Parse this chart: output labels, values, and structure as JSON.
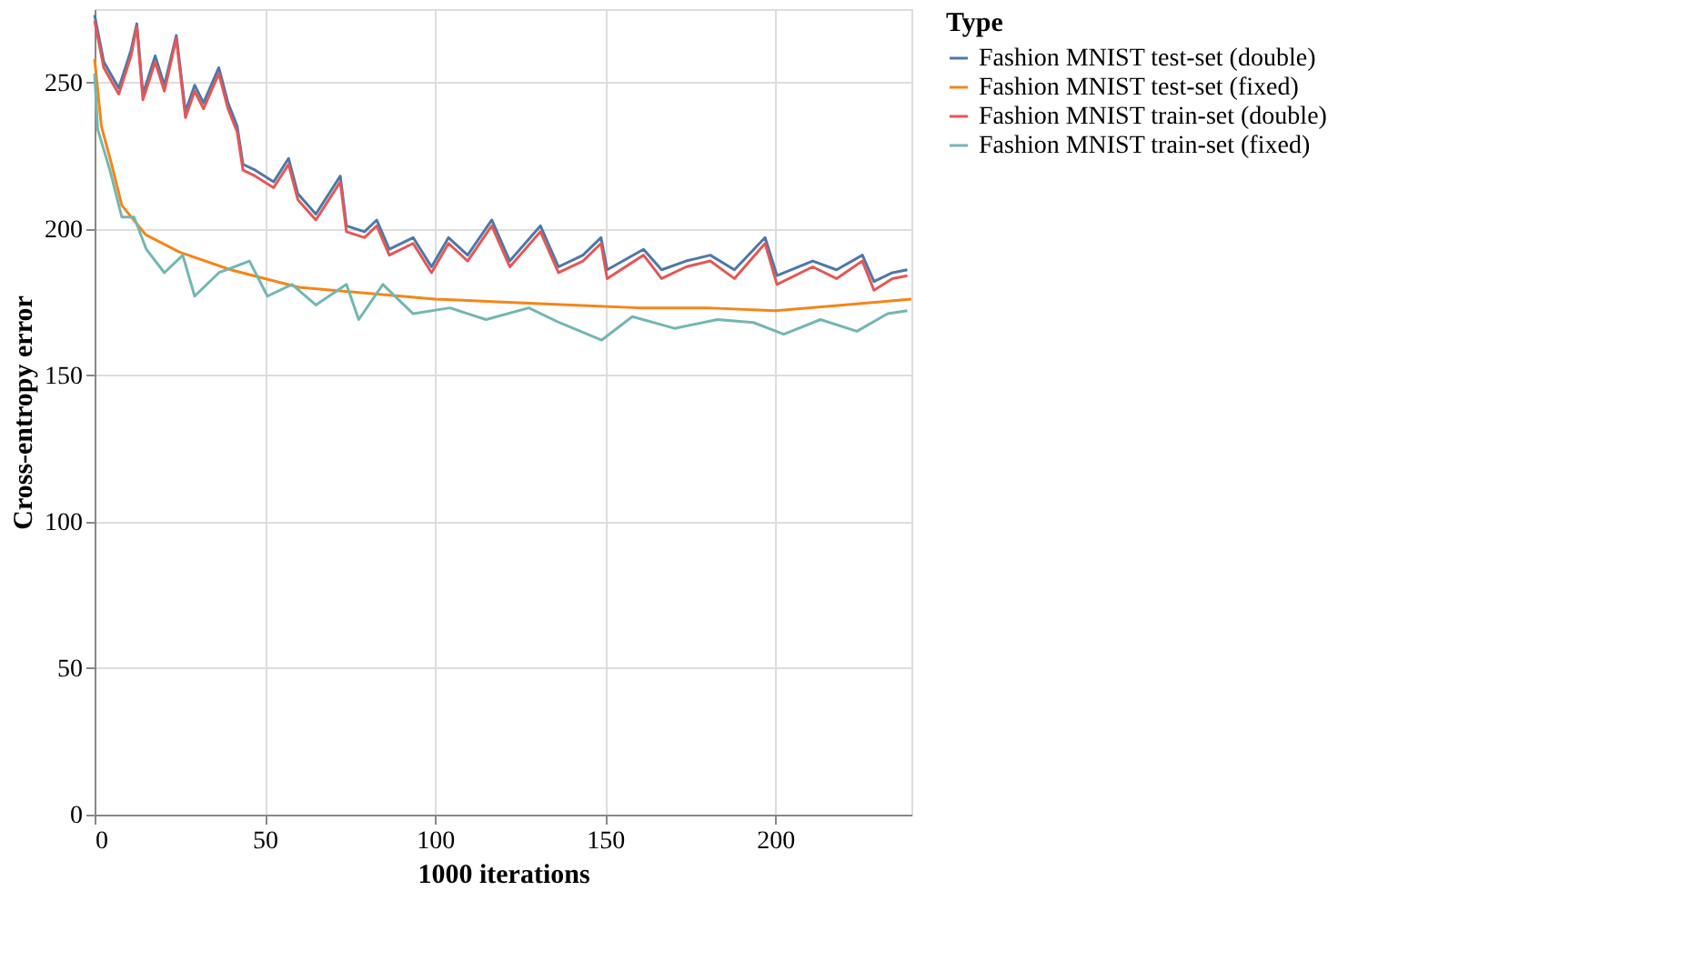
{
  "chart_data": {
    "type": "line",
    "xlabel": "1000 iterations",
    "ylabel": "Cross-entropy error",
    "legend_title": "Type",
    "xlim": [
      0,
      240
    ],
    "ylim": [
      0,
      275
    ],
    "xticks": [
      0,
      50,
      100,
      150,
      200
    ],
    "yticks": [
      0,
      50,
      100,
      150,
      200,
      250
    ],
    "grid": true,
    "legend": "right",
    "series": [
      {
        "name": "Fashion MNIST test-set (double)",
        "color": "#4c78a8",
        "x": [
          0,
          2.7,
          7.1,
          10.7,
          12.4,
          14.2,
          17.8,
          20.5,
          24,
          26.7,
          29.4,
          32,
          36.5,
          39.2,
          41.9,
          43.6,
          47.2,
          52.6,
          57,
          59.7,
          65,
          72.2,
          74,
          79.3,
          82.9,
          86.6,
          93.6,
          99,
          104,
          109.6,
          116.7,
          122,
          131,
          136.3,
          143.5,
          148.8,
          150.6,
          161.3,
          166.6,
          173.8,
          180.9,
          188,
          197,
          200.5,
          211,
          218,
          225.6,
          229,
          234.4,
          238.8
        ],
        "values": [
          273,
          257,
          248,
          261,
          270,
          246,
          259,
          249,
          266,
          240,
          249,
          243,
          255,
          243,
          235,
          222,
          220,
          216,
          224,
          212,
          205,
          218,
          201,
          199,
          203,
          193,
          197,
          187,
          197,
          191,
          203,
          189,
          201,
          187,
          191,
          197,
          186,
          193,
          186,
          189,
          191,
          186,
          197,
          184,
          189,
          186,
          191,
          182,
          185,
          186
        ]
      },
      {
        "name": "Fashion MNIST test-set (fixed)",
        "color": "#f58518",
        "x": [
          0,
          2,
          5,
          8,
          15,
          25,
          40,
          60,
          80,
          100,
          120,
          140,
          160,
          180,
          200,
          220,
          240
        ],
        "values": [
          258,
          235,
          222,
          208,
          198,
          192,
          186,
          180,
          178,
          176,
          175,
          174,
          173,
          173,
          172,
          174,
          176
        ]
      },
      {
        "name": "Fashion MNIST train-set (double)",
        "color": "#e45756",
        "x": [
          0,
          2.7,
          7.1,
          10.7,
          12.4,
          14.2,
          17.8,
          20.5,
          24,
          26.7,
          29.4,
          32,
          36.5,
          39.2,
          41.9,
          43.6,
          47.2,
          52.6,
          57,
          59.7,
          65,
          72.2,
          74,
          79.3,
          82.9,
          86.6,
          93.6,
          99,
          104,
          109.6,
          116.7,
          122,
          131,
          136.3,
          143.5,
          148.8,
          150.6,
          161.3,
          166.6,
          173.8,
          180.9,
          188,
          197,
          200.5,
          211,
          218,
          225.6,
          229,
          234.4,
          238.8
        ],
        "values": [
          271,
          255,
          246,
          259,
          269,
          244,
          257,
          247,
          265,
          238,
          247,
          241,
          253,
          241,
          233,
          220,
          218,
          214,
          222,
          210,
          203,
          216,
          199,
          197,
          201,
          191,
          195,
          185,
          195,
          189,
          201,
          187,
          199,
          185,
          189,
          195,
          183,
          191,
          183,
          187,
          189,
          183,
          195,
          181,
          187,
          183,
          189,
          179,
          183,
          184
        ]
      },
      {
        "name": "Fashion MNIST train-set (fixed)",
        "color": "#72b7b2",
        "x": [
          0,
          0.9,
          4.5,
          8,
          11.6,
          15.2,
          20.5,
          25.9,
          29.4,
          36.5,
          45.5,
          50.8,
          58,
          65,
          74,
          77.6,
          84.7,
          93.6,
          104.4,
          115,
          127.6,
          136.5,
          149,
          158,
          170.4,
          183,
          193.6,
          202.5,
          213.3,
          224,
          233,
          238.8
        ],
        "values": [
          253,
          234,
          220,
          204,
          204,
          193,
          185,
          191,
          177,
          185,
          189,
          177,
          181,
          174,
          181,
          169,
          181,
          171,
          173,
          169,
          173,
          168,
          162,
          170,
          166,
          169,
          168,
          164,
          169,
          165,
          171,
          172
        ]
      }
    ]
  }
}
